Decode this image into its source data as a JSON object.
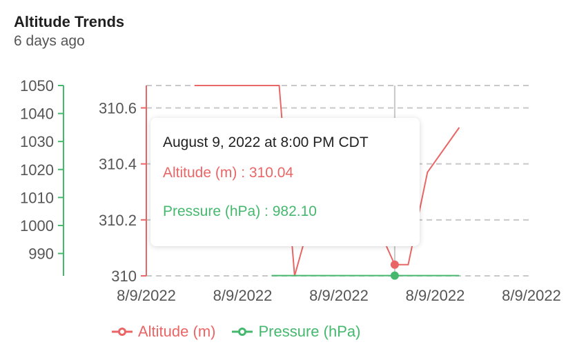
{
  "header": {
    "title": "Altitude Trends",
    "subtitle": "6 days ago"
  },
  "colors": {
    "altitude": "#ea6565",
    "pressure": "#45b86e",
    "grid": "#c8c8c8",
    "cursor": "#c8c8c8",
    "tick_text": "#555555"
  },
  "tooltip": {
    "date": "August 9, 2022 at 8:00 PM CDT",
    "altitude_text": "Altitude (m) : 310.04",
    "pressure_text": "Pressure (hPa) : 982.10"
  },
  "legend": [
    {
      "name": "Altitude (m)",
      "color_key": "altitude"
    },
    {
      "name": "Pressure (hPa)",
      "color_key": "pressure"
    }
  ],
  "chart_data": {
    "type": "line",
    "title": "Altitude Trends",
    "subtitle": "6 days ago",
    "x_tick_labels": [
      "8/9/2022",
      "8/9/2022",
      "8/9/2022",
      "8/9/2022",
      "8/9/2022"
    ],
    "left_axis": {
      "name": "Altitude (m)",
      "ticks": [
        310,
        310.2,
        310.4,
        310.6
      ],
      "tick_labels": [
        "310",
        "310.2",
        "310.4",
        "310.6"
      ],
      "range": [
        310,
        310.68
      ]
    },
    "right_axis": {
      "name": "Pressure (hPa)",
      "ticks": [
        990,
        1000,
        1010,
        1020,
        1030,
        1040,
        1050
      ],
      "tick_labels": [
        "990",
        "1000",
        "1010",
        "1020",
        "1030",
        "1040",
        "1050"
      ],
      "range": [
        982,
        1050
      ]
    },
    "grid": true,
    "legend_position": "bottom-left",
    "series": [
      {
        "name": "Altitude (m)",
        "axis": "left",
        "color_key": "altitude",
        "x": [
          0.5,
          1.0,
          1.38,
          1.54,
          1.85,
          2.28,
          2.58,
          2.72,
          2.92,
          3.25
        ],
        "y": [
          310.68,
          310.68,
          310.68,
          310.0,
          310.38,
          310.27,
          310.04,
          310.04,
          310.37,
          310.53
        ]
      },
      {
        "name": "Pressure (hPa)",
        "axis": "right",
        "color_key": "pressure",
        "x": [
          1.3,
          1.8,
          2.3,
          2.58,
          2.9,
          3.25
        ],
        "y": [
          982.1,
          982.1,
          982.1,
          982.1,
          982.1,
          982.1
        ]
      }
    ],
    "active_index": 2.58
  }
}
